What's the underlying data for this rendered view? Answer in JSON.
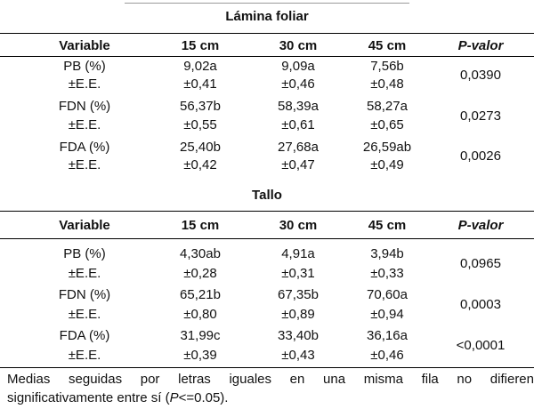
{
  "sections": [
    {
      "title": "Lámina foliar",
      "header": [
        "Variable",
        "15 cm",
        "30 cm",
        "45 cm",
        "P-valor"
      ],
      "rows": [
        {
          "variable": "PB (%)",
          "se_label": "±E.E.",
          "v15": "9,02a",
          "v30": "9,09a",
          "v45": "7,56b",
          "s15": "±0,41",
          "s30": "±0,46",
          "s45": "±0,48",
          "p": "0,0390"
        },
        {
          "variable": "FDN (%)",
          "se_label": "±E.E.",
          "v15": "56,37b",
          "v30": "58,39a",
          "v45": "58,27a",
          "s15": "±0,55",
          "s30": "±0,61",
          "s45": "±0,65",
          "p": "0,0273"
        },
        {
          "variable": "FDA (%)",
          "se_label": "±E.E.",
          "v15": "25,40b",
          "v30": "27,68a",
          "v45": "26,59ab",
          "s15": "±0,42",
          "s30": "±0,47",
          "s45": "±0,49",
          "p": "0,0026"
        }
      ]
    },
    {
      "title": "Tallo",
      "header": [
        "Variable",
        "15 cm",
        "30 cm",
        "45 cm",
        "P-valor"
      ],
      "rows": [
        {
          "variable": "PB (%)",
          "se_label": "±E.E.",
          "v15": "4,30ab",
          "v30": "4,91a",
          "v45": "3,94b",
          "s15": "±0,28",
          "s30": "±0,31",
          "s45": "±0,33",
          "p": "0,0965"
        },
        {
          "variable": "FDN (%)",
          "se_label": "±E.E.",
          "v15": "65,21b",
          "v30": "67,35b",
          "v45": "70,60a",
          "s15": "±0,80",
          "s30": "±0,89",
          "s45": "±0,94",
          "p": "0,0003"
        },
        {
          "variable": "FDA (%)",
          "se_label": "±E.E.",
          "v15": "31,99c",
          "v30": "33,40b",
          "v45": "36,16a",
          "s15": "±0,39",
          "s30": "±0,43",
          "s45": "±0,46",
          "p": "<0,0001"
        }
      ]
    }
  ],
  "footnote": {
    "line1": "Medias seguidas por letras iguales en una misma fila no difieren",
    "line2_pre": "significativamente entre sí (",
    "line2_italic": "P",
    "line2_post": "<=0.05)."
  }
}
